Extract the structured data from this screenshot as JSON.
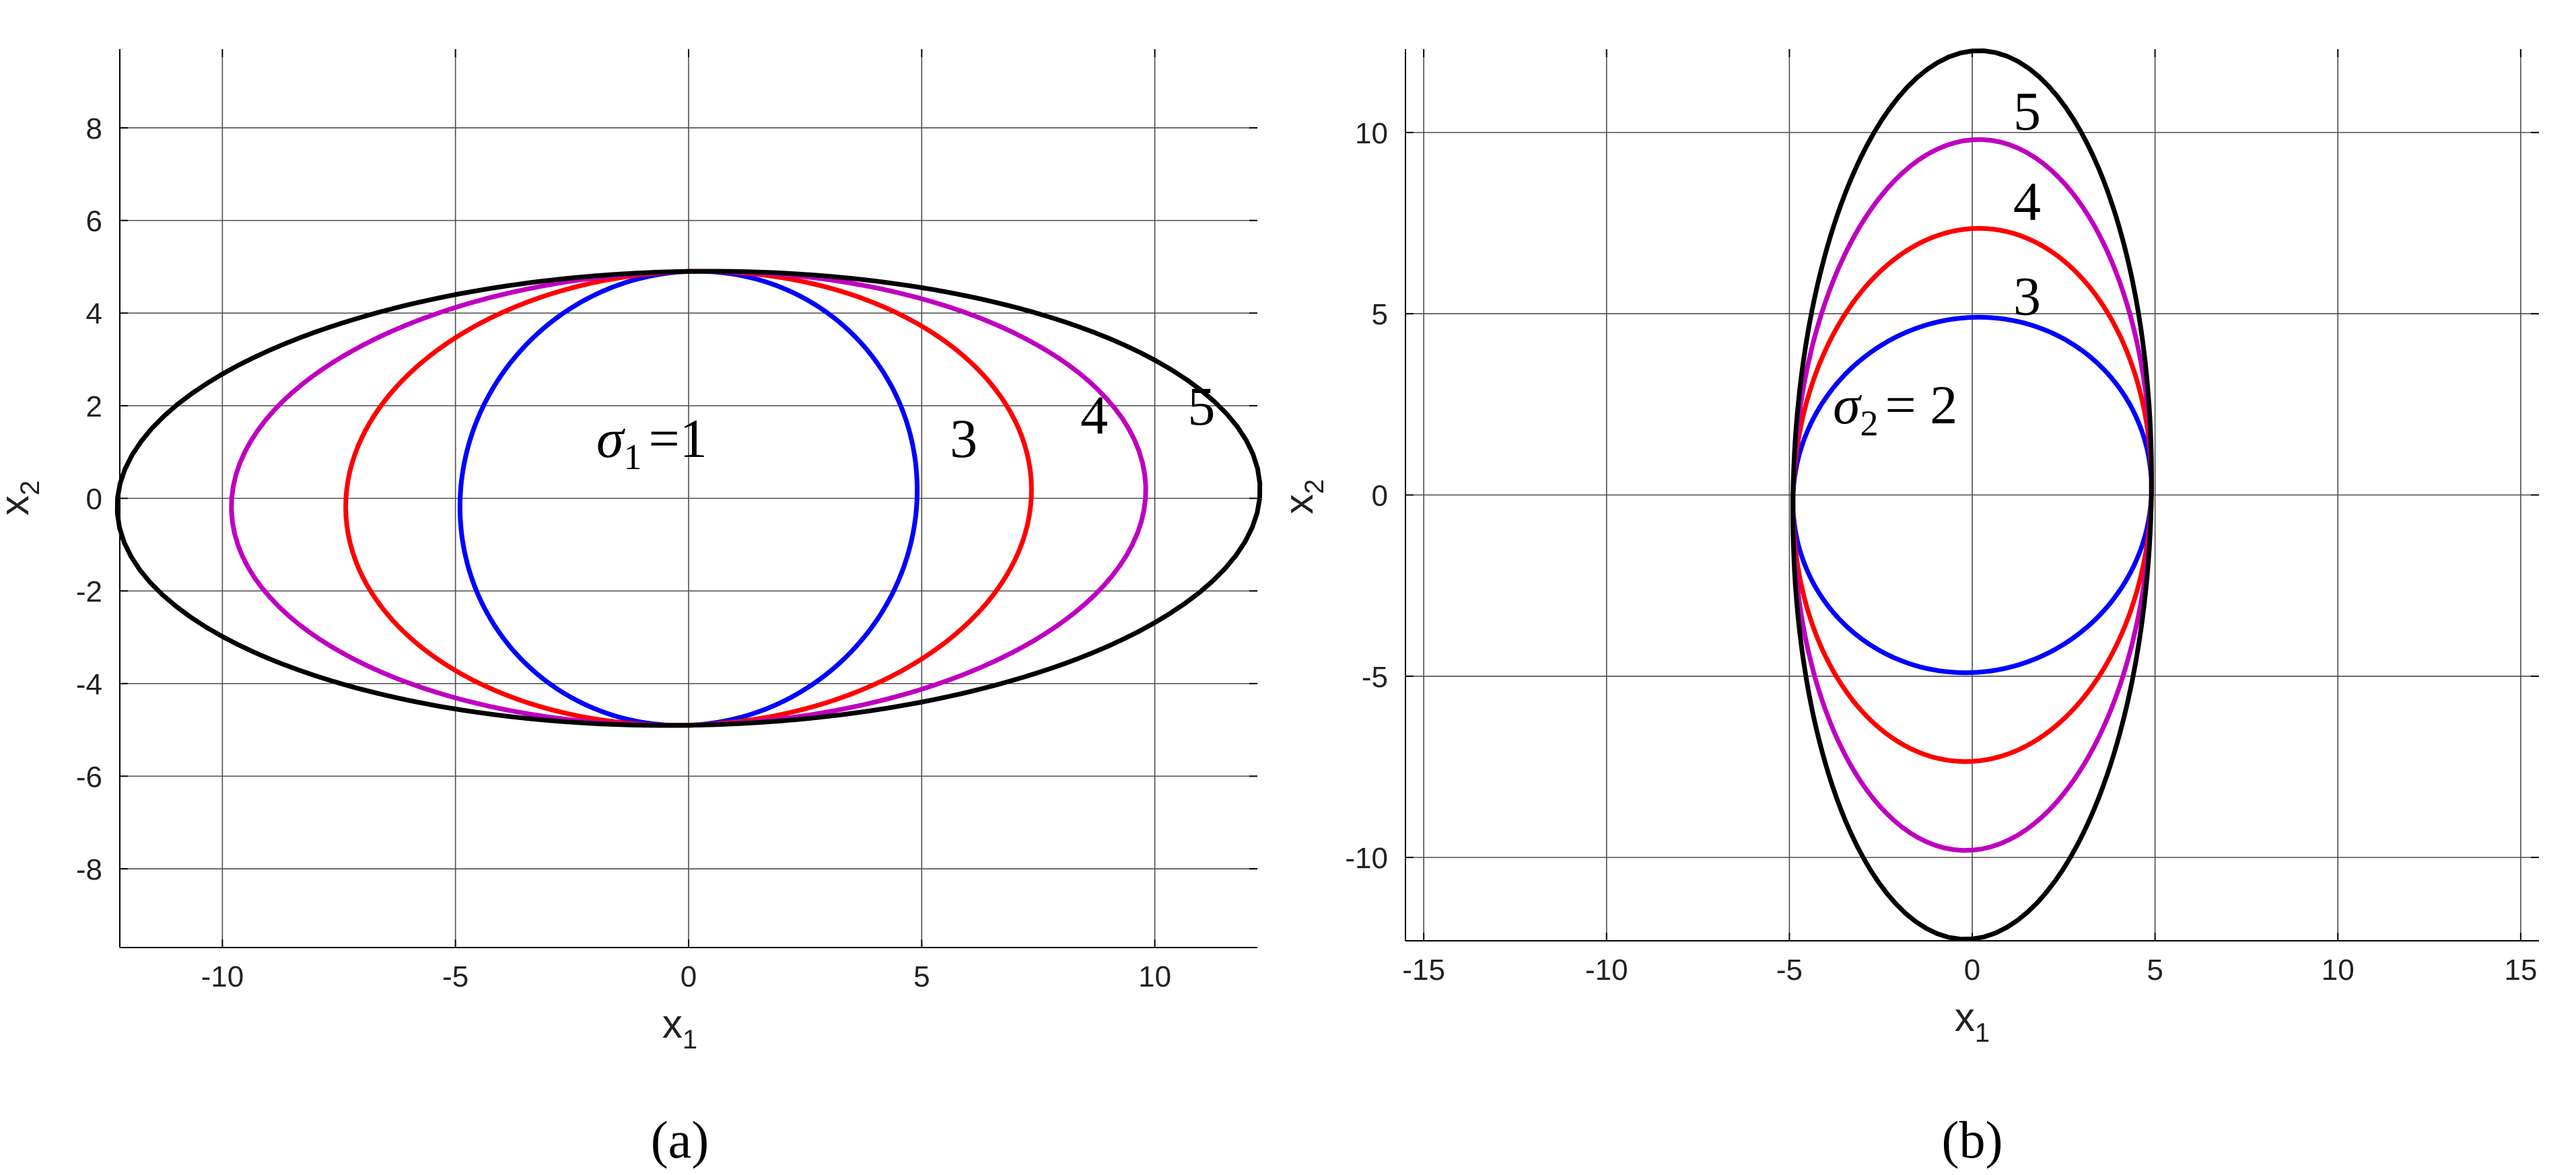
{
  "chart_data": [
    {
      "type": "line",
      "panel_label": "(a)",
      "xlabel": "x",
      "xlabel_sub": "1",
      "ylabel": "x",
      "ylabel_sub": "2",
      "xlim": [
        -12.2,
        12.2
      ],
      "ylim": [
        -9.7,
        9.7
      ],
      "xticks": [
        -10,
        -5,
        0,
        5,
        10
      ],
      "yticks": [
        -8,
        -6,
        -4,
        -2,
        0,
        2,
        4,
        6,
        8
      ],
      "grid": true,
      "series": [
        {
          "label": "1",
          "color": "#0000ff",
          "a": 4.9,
          "b": 4.9,
          "c": 0.9
        },
        {
          "label": "3",
          "color": "#ff0000",
          "a": 7.35,
          "b": 4.9,
          "c": 1.35
        },
        {
          "label": "4",
          "color": "#bf00bf",
          "a": 9.8,
          "b": 4.9,
          "c": 1.8
        },
        {
          "label": "5",
          "color": "#000000",
          "a": 12.25,
          "b": 4.9,
          "c": 2.25
        }
      ],
      "annotations": [
        {
          "symbol": "σ",
          "sub": "1",
          "text": "=1",
          "x": 0.4,
          "y": 1.3
        },
        {
          "text": "3",
          "x": 5.9,
          "y": 1.3
        },
        {
          "text": "4",
          "x": 8.7,
          "y": 1.8
        },
        {
          "text": "5",
          "x": 11.0,
          "y": 2.0
        }
      ]
    },
    {
      "type": "line",
      "panel_label": "(b)",
      "xlabel": "x",
      "xlabel_sub": "1",
      "ylabel": "x",
      "ylabel_sub": "2",
      "xlim": [
        -15.5,
        15.5
      ],
      "ylim": [
        -12.3,
        12.3
      ],
      "xticks": [
        -15,
        -10,
        -5,
        0,
        5,
        10,
        15
      ],
      "yticks": [
        -10,
        -5,
        0,
        5,
        10
      ],
      "grid": true,
      "series": [
        {
          "label": "2",
          "color": "#0000ff",
          "a": 4.9,
          "b": 4.9,
          "c": 0.9
        },
        {
          "label": "3",
          "color": "#ff0000",
          "a": 4.9,
          "b": 7.35,
          "c": 1.35
        },
        {
          "label": "4",
          "color": "#bf00bf",
          "a": 4.9,
          "b": 9.8,
          "c": 1.8
        },
        {
          "label": "5",
          "color": "#000000",
          "a": 4.9,
          "b": 12.25,
          "c": 2.25
        }
      ],
      "annotations": [
        {
          "text": "5",
          "x": 1.5,
          "y": 10.6
        },
        {
          "text": "4",
          "x": 1.5,
          "y": 8.1
        },
        {
          "text": "3",
          "x": 1.5,
          "y": 5.5
        },
        {
          "symbol": "σ",
          "sub": "2",
          "text": "= 2",
          "x": -0.4,
          "y": 2.5
        }
      ]
    }
  ]
}
